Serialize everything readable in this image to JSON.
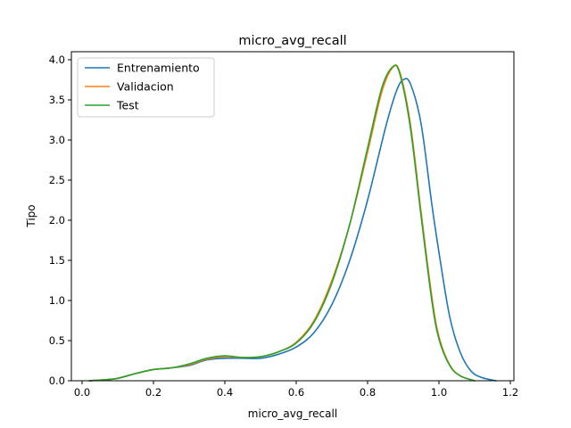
{
  "chart_data": {
    "type": "line",
    "title": "micro_avg_recall",
    "xlabel": "micro_avg_recall",
    "ylabel": "Tipo",
    "xlim": [
      -0.03,
      1.21
    ],
    "ylim": [
      0,
      4.1
    ],
    "xticks": [
      "0.0",
      "0.2",
      "0.4",
      "0.6",
      "0.8",
      "1.0",
      "1.2"
    ],
    "yticks": [
      "0.0",
      "0.5",
      "1.0",
      "1.5",
      "2.0",
      "2.5",
      "3.0",
      "3.5",
      "4.0"
    ],
    "grid": false,
    "legend_position": "top-left",
    "series": [
      {
        "name": "Entrenamiento",
        "color": "#1f77b4",
        "points": [
          [
            0.02,
            0.0
          ],
          [
            0.06,
            0.01
          ],
          [
            0.1,
            0.03
          ],
          [
            0.15,
            0.09
          ],
          [
            0.2,
            0.14
          ],
          [
            0.25,
            0.16
          ],
          [
            0.3,
            0.19
          ],
          [
            0.35,
            0.26
          ],
          [
            0.4,
            0.28
          ],
          [
            0.45,
            0.28
          ],
          [
            0.5,
            0.28
          ],
          [
            0.55,
            0.33
          ],
          [
            0.6,
            0.42
          ],
          [
            0.65,
            0.6
          ],
          [
            0.7,
            0.95
          ],
          [
            0.75,
            1.5
          ],
          [
            0.8,
            2.25
          ],
          [
            0.85,
            3.15
          ],
          [
            0.88,
            3.6
          ],
          [
            0.9,
            3.75
          ],
          [
            0.92,
            3.7
          ],
          [
            0.95,
            3.2
          ],
          [
            0.98,
            2.2
          ],
          [
            1.0,
            1.6
          ],
          [
            1.03,
            0.8
          ],
          [
            1.06,
            0.35
          ],
          [
            1.09,
            0.12
          ],
          [
            1.12,
            0.04
          ],
          [
            1.16,
            0.0
          ]
        ]
      },
      {
        "name": "Validacion",
        "color": "#ff7f0e",
        "points": [
          [
            0.02,
            0.0
          ],
          [
            0.06,
            0.01
          ],
          [
            0.1,
            0.03
          ],
          [
            0.15,
            0.09
          ],
          [
            0.2,
            0.14
          ],
          [
            0.25,
            0.16
          ],
          [
            0.3,
            0.2
          ],
          [
            0.35,
            0.27
          ],
          [
            0.4,
            0.3
          ],
          [
            0.45,
            0.29
          ],
          [
            0.5,
            0.3
          ],
          [
            0.55,
            0.36
          ],
          [
            0.6,
            0.48
          ],
          [
            0.65,
            0.75
          ],
          [
            0.7,
            1.25
          ],
          [
            0.75,
            1.95
          ],
          [
            0.8,
            2.85
          ],
          [
            0.84,
            3.6
          ],
          [
            0.87,
            3.9
          ],
          [
            0.89,
            3.85
          ],
          [
            0.92,
            3.2
          ],
          [
            0.95,
            2.1
          ],
          [
            0.98,
            1.05
          ],
          [
            1.0,
            0.55
          ],
          [
            1.03,
            0.2
          ],
          [
            1.06,
            0.06
          ],
          [
            1.1,
            0.0
          ]
        ]
      },
      {
        "name": "Test",
        "color": "#2ca02c",
        "points": [
          [
            0.02,
            0.0
          ],
          [
            0.06,
            0.01
          ],
          [
            0.1,
            0.03
          ],
          [
            0.15,
            0.09
          ],
          [
            0.2,
            0.14
          ],
          [
            0.25,
            0.16
          ],
          [
            0.3,
            0.21
          ],
          [
            0.35,
            0.28
          ],
          [
            0.4,
            0.31
          ],
          [
            0.45,
            0.29
          ],
          [
            0.5,
            0.3
          ],
          [
            0.55,
            0.36
          ],
          [
            0.6,
            0.47
          ],
          [
            0.65,
            0.73
          ],
          [
            0.7,
            1.22
          ],
          [
            0.75,
            1.95
          ],
          [
            0.8,
            2.9
          ],
          [
            0.84,
            3.65
          ],
          [
            0.87,
            3.91
          ],
          [
            0.89,
            3.83
          ],
          [
            0.92,
            3.15
          ],
          [
            0.95,
            2.05
          ],
          [
            0.98,
            1.0
          ],
          [
            1.0,
            0.52
          ],
          [
            1.03,
            0.19
          ],
          [
            1.06,
            0.06
          ],
          [
            1.1,
            0.0
          ]
        ]
      }
    ]
  }
}
